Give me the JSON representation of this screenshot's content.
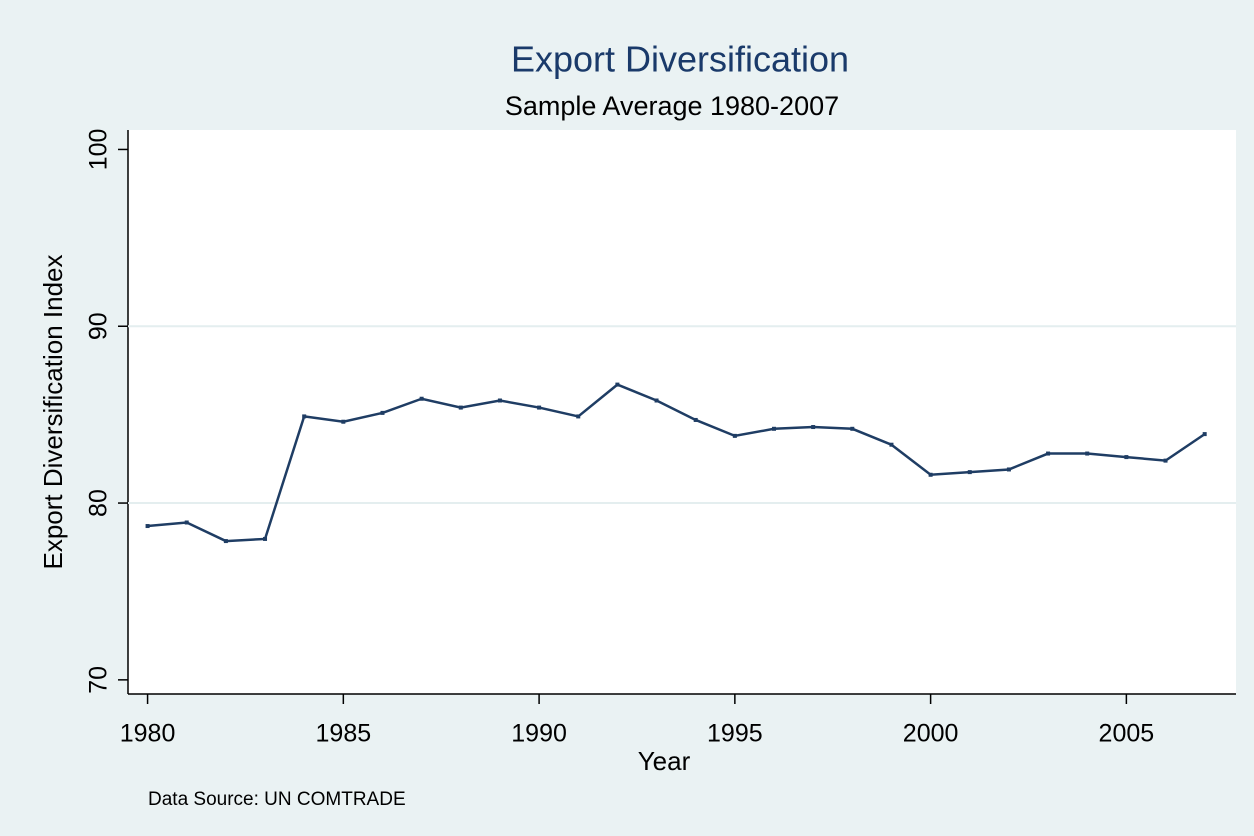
{
  "chart_data": {
    "type": "line",
    "title": "Export Diversification",
    "subtitle": "Sample Average 1980-2007",
    "xlabel": "Year",
    "ylabel": "Export Diversification Index",
    "note": "Data Source: UN COMTRADE",
    "x": [
      1980,
      1981,
      1982,
      1983,
      1984,
      1985,
      1986,
      1987,
      1988,
      1989,
      1990,
      1991,
      1992,
      1993,
      1994,
      1995,
      1996,
      1997,
      1998,
      1999,
      2000,
      2001,
      2002,
      2003,
      2004,
      2005,
      2006,
      2007
    ],
    "series": [
      {
        "name": "Export Diversification Index",
        "color": "#1f3d64",
        "values": [
          78.7,
          78.9,
          77.85,
          77.97,
          84.9,
          84.6,
          85.1,
          85.9,
          85.4,
          85.8,
          85.4,
          84.9,
          86.7,
          85.8,
          84.7,
          83.8,
          84.2,
          84.3,
          84.2,
          83.3,
          81.6,
          81.75,
          81.9,
          82.8,
          82.8,
          82.6,
          82.4,
          83.9
        ]
      }
    ],
    "xlim": [
      1979.5,
      2007.8
    ],
    "xticks": [
      1980,
      1985,
      1990,
      1995,
      2000,
      2005
    ],
    "ylim": [
      69.2,
      101.1
    ],
    "yticks": [
      70,
      80,
      90,
      100
    ],
    "grid": true
  }
}
